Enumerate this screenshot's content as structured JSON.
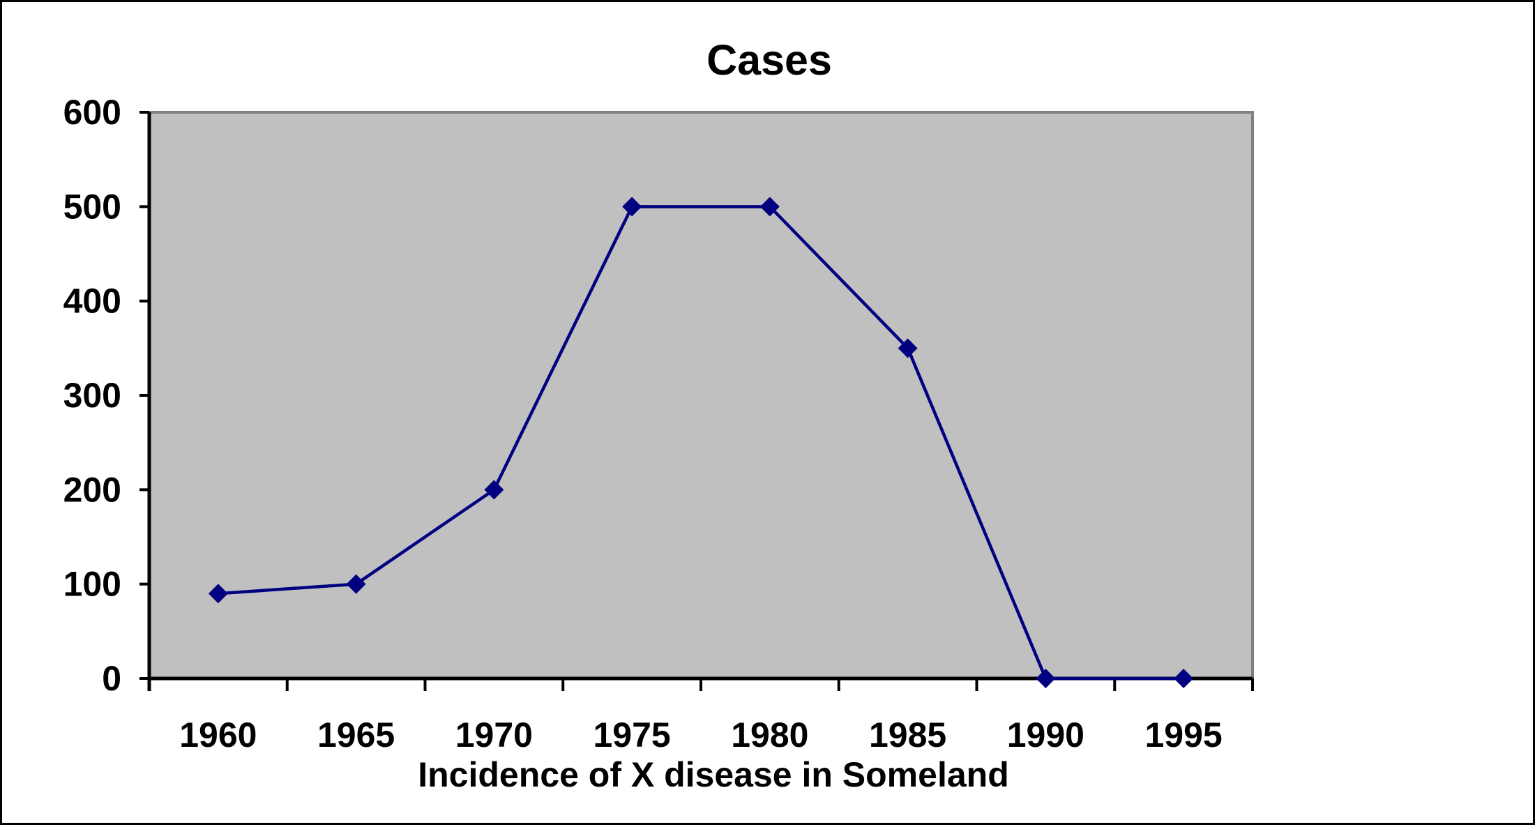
{
  "chart_data": {
    "type": "line",
    "title": "Cases",
    "xlabel": "Incidence of X disease in Someland",
    "ylabel": "",
    "categories": [
      "1960",
      "1965",
      "1970",
      "1975",
      "1980",
      "1985",
      "1990",
      "1995"
    ],
    "series": [
      {
        "values": [
          90,
          100,
          200,
          500,
          500,
          350,
          0,
          0
        ],
        "color": "#000080",
        "marker": "diamond"
      }
    ],
    "ylim": [
      0,
      600
    ],
    "yticks": [
      0,
      100,
      200,
      300,
      400,
      500,
      600
    ],
    "grid": false,
    "legend": "none",
    "plot_background": "#C0C0C0",
    "plot_border_color": "#808080"
  }
}
